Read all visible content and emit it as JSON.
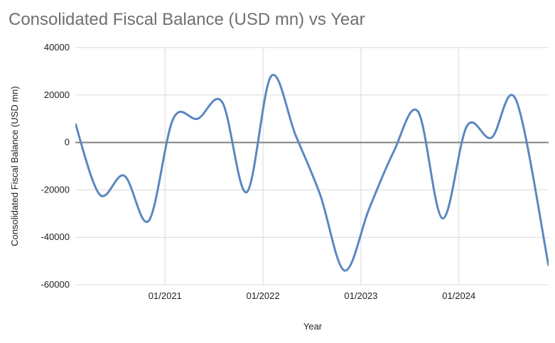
{
  "chart_data": {
    "type": "line",
    "title": "Consolidated Fiscal Balance (USD mn) vs Year",
    "xlabel": "Year",
    "ylabel": "Consolidated Fiscal Balance (USD mn)",
    "ylim": [
      -60000,
      40000
    ],
    "yticks": [
      40000,
      20000,
      0,
      -20000,
      -40000,
      -60000
    ],
    "ytick_labels": [
      "40000",
      "20000",
      "0",
      "-20000",
      "-40000",
      "-60000"
    ],
    "xlim": [
      "2020-02",
      "2024-12"
    ],
    "xticks": [
      "2021-01",
      "2022-01",
      "2023-01",
      "2024-01"
    ],
    "xtick_labels": [
      "01/2021",
      "01/2022",
      "01/2023",
      "01/2024"
    ],
    "grid": true,
    "legend": "none",
    "series": [
      {
        "color": "#5b87c0",
        "x": [
          "2020-02",
          "2020-05",
          "2020-08",
          "2020-11",
          "2021-02",
          "2021-05",
          "2021-08",
          "2021-11",
          "2022-02",
          "2022-05",
          "2022-08",
          "2022-11",
          "2023-02",
          "2023-05",
          "2023-08",
          "2023-11",
          "2024-02",
          "2024-05",
          "2024-08",
          "2024-12"
        ],
        "values": [
          8000,
          -22000,
          -14000,
          -33000,
          10000,
          10000,
          17000,
          -21000,
          28000,
          3000,
          -22000,
          -54000,
          -28000,
          -4000,
          13000,
          -32000,
          7000,
          2000,
          18000,
          -52000
        ]
      }
    ]
  }
}
